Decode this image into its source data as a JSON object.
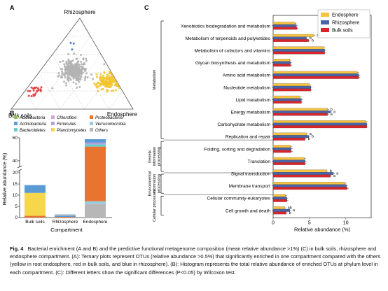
{
  "panels": {
    "a": {
      "label": "A"
    },
    "b": {
      "label": "B"
    },
    "c": {
      "label": "C"
    }
  },
  "ternary": {
    "vertices": {
      "top": "Rhizosphere",
      "bottom_left": "Bulk soils",
      "bottom_right": "Endosphere"
    },
    "colors": {
      "bulk": "#e03a3e",
      "rhizo": "#3e6fcd",
      "endo": "#f4c430",
      "other": "#b3b3b3",
      "grid": "#bbbbbb"
    },
    "groups": [
      {
        "name": "other",
        "count": 320,
        "center": [
          0.3,
          0.42,
          0.28
        ],
        "spread": 0.07
      },
      {
        "name": "endo",
        "count": 170,
        "center": [
          0.08,
          0.3,
          0.62
        ],
        "spread": 0.055
      },
      {
        "name": "bulk",
        "count": 22,
        "center": [
          0.72,
          0.2,
          0.08
        ],
        "spread": 0.035
      },
      {
        "name": "rhizo",
        "count": 3,
        "center": [
          0.15,
          0.72,
          0.13
        ],
        "spread": 0.04
      }
    ]
  },
  "legend_b": {
    "items": [
      {
        "name": "Acidobacteria",
        "color": "#8bc34a"
      },
      {
        "name": "Chloroflexi",
        "color": "#d4a5d8"
      },
      {
        "name": "Proteobacteria",
        "color": "#e87430"
      },
      {
        "name": "Actinobacteria",
        "color": "#5b9bd5"
      },
      {
        "name": "Firmicutes",
        "color": "#b89ee0"
      },
      {
        "name": "Verrucomicrobia",
        "color": "#9ccbe0"
      },
      {
        "name": "Bacteroidetes",
        "color": "#66cccc"
      },
      {
        "name": "Planctomycetes",
        "color": "#f6d64a"
      },
      {
        "name": "Others",
        "color": "#b7b7b7"
      }
    ]
  },
  "chart_data": [
    {
      "type": "bar",
      "panel": "B",
      "stacked": true,
      "xlabel": "Compartment",
      "ylabel": "Relative abundance (%)",
      "categories": [
        "Bulk soils",
        "Rhizosphere",
        "Endosphere"
      ],
      "y_ticks_lower": [
        "0",
        "5",
        "10",
        "15",
        "20"
      ],
      "y_ticks_upper": [
        "40",
        "60"
      ],
      "axis_break": true,
      "series": [
        {
          "name": "Proteobacteria",
          "values": [
            0.8,
            0.3,
            0
          ]
        },
        {
          "name": "Planctomycetes",
          "values": [
            10.2,
            0,
            0
          ]
        },
        {
          "name": "Actinobacteria",
          "values": [
            3.5,
            0.5,
            0
          ]
        },
        {
          "name": "Others",
          "values": [
            0,
            0.5,
            6.0
          ]
        },
        {
          "name": "Verrucomicrobia",
          "values": [
            0,
            0.2,
            1.3
          ]
        },
        {
          "name": "Proteobacteria (endosphere)",
          "values": [
            0,
            0,
            45
          ]
        },
        {
          "name": "Bacteroidetes",
          "values": [
            0,
            0,
            2.0
          ]
        },
        {
          "name": "Firmicutes",
          "values": [
            0,
            0,
            1.5
          ]
        },
        {
          "name": "Actinobacteria (endosphere)",
          "values": [
            0,
            0,
            3.0
          ]
        }
      ]
    },
    {
      "type": "bar",
      "panel": "C",
      "orientation": "horizontal",
      "xlabel": "Relative abundance (%)",
      "xlim": [
        0,
        13.5
      ],
      "x_ticks": [
        "0",
        "5",
        "10"
      ],
      "legend": [
        {
          "name": "Endosphere",
          "color": "#f5c242"
        },
        {
          "name": "Rhizosphere",
          "color": "#4a64a8"
        },
        {
          "name": "Bulk soils",
          "color": "#d9262d"
        }
      ],
      "groups": [
        {
          "name": "Metabolism",
          "start": 0,
          "end": 11
        },
        {
          "name": "Genetic information processing",
          "start": 11,
          "end": 14
        },
        {
          "name": "Environmental information processing",
          "start": 14,
          "end": 16
        },
        {
          "name": "Cellular processes",
          "start": 16,
          "end": 18
        }
      ],
      "categories": [
        "Xenobiotics biodegradation and metabolism",
        "Metabolism of terpenoids and polyketides",
        "Metabolism of cofactors and vitamins",
        "Glycan biosynthesis and metabolism",
        "Amino acid metabolism",
        "Nucleotide metabolism",
        "Lipid metabolism",
        "Energy metabolism",
        "Carbohydrate metabolism",
        "Replication and repair",
        "Folding, sorting and degradation",
        "Translation",
        "Signal transduction",
        "Membrane transport",
        "Cellular community-eukaryotes",
        "Cell growth and death"
      ],
      "category_group_index": [
        0,
        0,
        0,
        0,
        0,
        0,
        0,
        0,
        0,
        1,
        1,
        1,
        2,
        2,
        3,
        3
      ],
      "series": [
        {
          "name": "Endosphere",
          "values": [
            3.0,
            5.6,
            7.0,
            2.3,
            11.6,
            5.0,
            3.7,
            7.5,
            12.8,
            4.6,
            2.4,
            4.3,
            7.4,
            9.9,
            1.7,
            1.6
          ]
        },
        {
          "name": "Rhizosphere",
          "values": [
            3.2,
            4.6,
            7.1,
            2.4,
            11.8,
            5.2,
            3.9,
            7.9,
            12.9,
            4.9,
            2.5,
            4.4,
            8.3,
            10.1,
            1.9,
            2.3
          ]
        },
        {
          "name": "Bulk soils",
          "values": [
            3.3,
            4.9,
            7.1,
            2.4,
            11.8,
            5.2,
            3.9,
            7.5,
            12.9,
            4.4,
            2.5,
            4.4,
            7.9,
            10.2,
            1.9,
            1.8
          ]
        }
      ],
      "sig_letters": [
        null,
        [
          "a",
          "b",
          "b"
        ],
        null,
        null,
        null,
        null,
        null,
        [
          "b",
          "a",
          "a"
        ],
        null,
        [
          "a",
          "b",
          "b"
        ],
        null,
        null,
        [
          "b",
          "a",
          "a"
        ],
        null,
        null,
        [
          "ab",
          "a",
          "b"
        ]
      ]
    }
  ],
  "caption": {
    "fig_label": "Fig. 4",
    "text": "Bacterial enrichment (A and B) and the predictive functional metagenome composition (mean relative abundance >1%) (C) in bulk soils, rhizosphere and endosphere compartment. (A): Ternary plots represent OTUs (relative abundance >0.5%) that significantly enriched in one compartment compared with the others (yellow in root endosphere, red in bulk soils, and blue in rhizosphere). (B): Histogram represents the total relative abundance of enriched OTUs at phylum level in each compartment. (C): Different letters show the significant differences (P<0.05) by Wilcoxon test."
  }
}
